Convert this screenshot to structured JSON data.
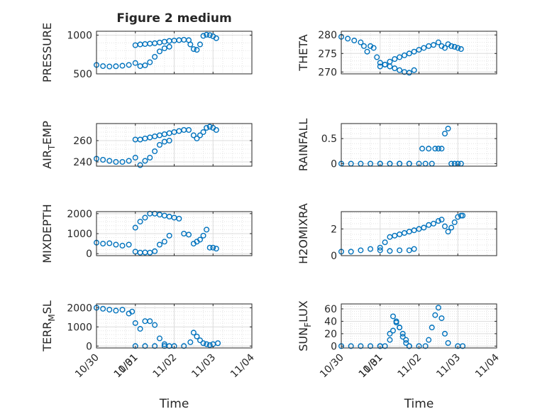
{
  "figure_title": "Figure 2 medium",
  "marker_color": "#0072BD",
  "chart_data": [
    {
      "type": "scatter",
      "title": "Figure 2 medium",
      "ylabel": "PRESSURE",
      "ylabel_sub": "",
      "ylabel_tail": "",
      "xlim": [
        "10/30",
        "11/04"
      ],
      "ylim": [
        500,
        1050
      ],
      "yticks": [
        500,
        1000
      ],
      "ytick_labels": [
        "500",
        "1000"
      ],
      "xticks": [
        "10/30",
        "10/31",
        "11/01",
        "11/02",
        "11/03",
        "11/04"
      ],
      "xtick_labels_shown": false,
      "grid": "major+minor",
      "series": [
        {
          "x": [
            "10/30 00:00",
            "10/30 04:00",
            "10/30 08:00",
            "10/30 12:00",
            "10/30 16:00",
            "10/30 20:00",
            "10/31 00:00",
            "10/31 03:00",
            "10/31 06:00",
            "10/31 09:00",
            "10/31 12:00",
            "10/31 15:00",
            "10/31 18:00",
            "10/31 21:00",
            "11/01 00:00",
            "11/01 03:00",
            "11/01 06:00",
            "11/01 09:00",
            "11/01 12:00",
            "11/01 15:00",
            "11/01 18:00",
            "11/01 21:00",
            "11/02 00:00",
            "11/02 03:00",
            "11/02 06:00",
            "11/02 09:00",
            "11/02 10:00",
            "11/02 12:00",
            "11/02 14:00",
            "11/02 16:00",
            "11/02 18:00",
            "11/02 20:00",
            "11/02 22:00",
            "11/03 00:00",
            "11/03 02:00"
          ],
          "y": [
            615,
            600,
            595,
            598,
            605,
            615,
            640,
            600,
            610,
            650,
            720,
            790,
            830,
            850,
            870,
            880,
            885,
            890,
            895,
            905,
            915,
            925,
            930,
            935,
            940,
            935,
            880,
            820,
            810,
            880,
            990,
            1005,
            1000,
            985,
            960
          ]
        }
      ]
    },
    {
      "type": "scatter",
      "ylabel": "THETA",
      "ylabel_sub": "",
      "ylabel_tail": "",
      "xlim": [
        "10/30",
        "11/04"
      ],
      "ylim": [
        269.5,
        281
      ],
      "yticks": [
        270,
        275,
        280
      ],
      "ytick_labels": [
        "270",
        "275",
        "280"
      ],
      "xtick_labels_shown": false,
      "grid": "major+minor",
      "series": [
        {
          "x": [
            "10/30 00:00",
            "10/30 04:00",
            "10/30 08:00",
            "10/30 12:00",
            "10/30 14:00",
            "10/30 16:00",
            "10/30 18:00",
            "10/30 20:00",
            "10/30 22:00",
            "10/31 00:00",
            "10/31 03:00",
            "10/31 06:00",
            "10/31 09:00",
            "10/31 12:00",
            "10/31 15:00",
            "10/31 18:00",
            "10/31 21:00",
            "11/01 00:00",
            "11/01 03:00",
            "11/01 06:00",
            "11/01 09:00",
            "11/01 12:00",
            "11/01 15:00",
            "11/01 18:00",
            "11/01 21:00",
            "11/02 00:00",
            "11/02 03:00",
            "11/02 06:00",
            "11/02 09:00",
            "11/02 12:00",
            "11/02 14:00",
            "11/02 16:00",
            "11/02 18:00",
            "11/02 20:00",
            "11/02 22:00",
            "11/03 00:00",
            "11/03 02:00"
          ],
          "y": [
            279.5,
            279.0,
            278.5,
            278.0,
            277.0,
            275.5,
            277.0,
            276.5,
            274.0,
            272.5,
            272.0,
            271.5,
            271.0,
            270.5,
            270.0,
            269.8,
            270.5,
            271.5,
            272.0,
            272.8,
            273.5,
            274.0,
            274.5,
            275.0,
            275.5,
            276.0,
            276.5,
            277.0,
            277.3,
            278.0,
            277.0,
            276.5,
            277.5,
            277.0,
            276.8,
            276.5,
            276.2
          ]
        }
      ]
    },
    {
      "type": "scatter",
      "ylabel": "AIR",
      "ylabel_sub": "T",
      "ylabel_tail": "EMP",
      "xlim": [
        "10/30",
        "11/04"
      ],
      "ylim": [
        236,
        276
      ],
      "yticks": [
        240,
        260
      ],
      "ytick_labels": [
        "240",
        "260"
      ],
      "xtick_labels_shown": false,
      "grid": "major+minor",
      "series": [
        {
          "x": [
            "10/30 00:00",
            "10/30 04:00",
            "10/30 08:00",
            "10/30 12:00",
            "10/30 16:00",
            "10/30 20:00",
            "10/31 00:00",
            "10/31 03:00",
            "10/31 06:00",
            "10/31 09:00",
            "10/31 12:00",
            "10/31 15:00",
            "10/31 18:00",
            "10/31 21:00",
            "11/01 00:00",
            "11/01 03:00",
            "11/01 06:00",
            "11/01 09:00",
            "11/01 12:00",
            "11/01 15:00",
            "11/01 18:00",
            "11/01 21:00",
            "11/02 00:00",
            "11/02 03:00",
            "11/02 06:00",
            "11/02 09:00",
            "11/02 12:00",
            "11/02 14:00",
            "11/02 16:00",
            "11/02 18:00",
            "11/02 20:00",
            "11/02 22:00",
            "11/03 00:00",
            "11/03 02:00"
          ],
          "y": [
            243,
            242,
            241,
            240,
            240,
            241,
            244,
            237,
            241,
            244,
            250,
            256,
            259,
            260,
            261,
            261,
            262,
            263,
            264,
            265,
            266,
            267,
            268,
            269,
            270,
            270,
            265,
            262,
            265,
            268,
            272,
            273,
            272,
            270
          ]
        }
      ]
    },
    {
      "type": "scatter",
      "ylabel": "RAINFALL",
      "ylabel_sub": "",
      "ylabel_tail": "",
      "xlim": [
        "10/30",
        "11/04"
      ],
      "ylim": [
        -0.05,
        0.8
      ],
      "yticks": [
        0,
        0.5
      ],
      "ytick_labels": [
        "0",
        "0.5"
      ],
      "xtick_labels_shown": false,
      "grid": "major+minor",
      "series": [
        {
          "x": [
            "10/30 00:00",
            "10/30 06:00",
            "10/30 12:00",
            "10/30 18:00",
            "10/31 00:00",
            "10/31 06:00",
            "10/31 12:00",
            "10/31 18:00",
            "11/01 00:00",
            "11/01 06:00",
            "11/01 12:00",
            "11/01 18:00",
            "11/02 00:00",
            "11/02 02:00",
            "11/02 04:00",
            "11/02 06:00",
            "11/02 08:00",
            "11/02 10:00",
            "11/02 12:00",
            "11/02 14:00",
            "11/02 16:00",
            "11/02 18:00",
            "11/02 20:00",
            "11/02 22:00",
            "11/03 00:00",
            "11/03 02:00"
          ],
          "y": [
            0,
            0,
            0,
            0,
            0,
            0,
            0,
            0,
            0,
            0,
            0,
            0,
            0,
            0.3,
            0,
            0.3,
            0,
            0.3,
            0.3,
            0.3,
            0.6,
            0.7,
            0,
            0,
            0,
            0
          ]
        }
      ]
    },
    {
      "type": "scatter",
      "ylabel": "MIXDEPTH",
      "ylabel_sub": "",
      "ylabel_tail": "",
      "xlim": [
        "10/30",
        "11/04"
      ],
      "ylim": [
        -100,
        2100
      ],
      "yticks": [
        0,
        1000,
        2000
      ],
      "ytick_labels": [
        "0",
        "1000",
        "2000"
      ],
      "xtick_labels_shown": false,
      "grid": "major+minor",
      "series": [
        {
          "x": [
            "10/30 00:00",
            "10/30 04:00",
            "10/30 08:00",
            "10/30 12:00",
            "10/30 16:00",
            "10/30 20:00",
            "10/31 00:00",
            "10/31 03:00",
            "10/31 06:00",
            "10/31 09:00",
            "10/31 12:00",
            "10/31 15:00",
            "10/31 18:00",
            "10/31 21:00",
            "11/01 00:00",
            "11/01 03:00",
            "11/01 06:00",
            "11/01 09:00",
            "11/01 12:00",
            "11/01 15:00",
            "11/01 18:00",
            "11/01 21:00",
            "11/02 00:00",
            "11/02 03:00",
            "11/02 06:00",
            "11/02 09:00",
            "11/02 12:00",
            "11/02 14:00",
            "11/02 16:00",
            "11/02 18:00",
            "11/02 20:00",
            "11/02 22:00",
            "11/03 00:00",
            "11/03 02:00"
          ],
          "y": [
            550,
            500,
            520,
            450,
            400,
            450,
            100,
            50,
            60,
            50,
            120,
            450,
            600,
            900,
            1300,
            1600,
            1800,
            2000,
            2000,
            1950,
            1900,
            1850,
            1800,
            1750,
            1000,
            950,
            500,
            600,
            700,
            900,
            1200,
            300,
            300,
            250
          ]
        }
      ]
    },
    {
      "type": "scatter",
      "ylabel": "H2OMIXRA",
      "ylabel_sub": "",
      "ylabel_tail": "",
      "xlim": [
        "10/30",
        "11/04"
      ],
      "ylim": [
        0,
        3.3
      ],
      "yticks": [
        0,
        2
      ],
      "ytick_labels": [
        "0",
        "2"
      ],
      "xtick_labels_shown": false,
      "grid": "major+minor",
      "series": [
        {
          "x": [
            "10/30 00:00",
            "10/30 06:00",
            "10/30 12:00",
            "10/30 18:00",
            "10/31 00:00",
            "10/31 06:00",
            "10/31 12:00",
            "10/31 18:00",
            "10/31 21:00",
            "11/01 00:00",
            "11/01 03:00",
            "11/01 06:00",
            "11/01 09:00",
            "11/01 12:00",
            "11/01 15:00",
            "11/01 18:00",
            "11/01 21:00",
            "11/02 00:00",
            "11/02 03:00",
            "11/02 06:00",
            "11/02 09:00",
            "11/02 12:00",
            "11/02 14:00",
            "11/02 16:00",
            "11/02 18:00",
            "11/02 20:00",
            "11/02 22:00",
            "11/03 00:00",
            "11/03 02:00",
            "11/03 03:00"
          ],
          "y": [
            0.3,
            0.3,
            0.4,
            0.5,
            0.4,
            0.35,
            0.4,
            0.4,
            0.5,
            0.6,
            1.0,
            1.4,
            1.5,
            1.6,
            1.7,
            1.8,
            1.9,
            2.0,
            2.1,
            2.3,
            2.4,
            2.6,
            2.7,
            2.2,
            1.8,
            2.1,
            2.5,
            2.9,
            3.0,
            3.0
          ]
        }
      ]
    },
    {
      "type": "scatter",
      "ylabel": "TERR",
      "ylabel_sub": "M",
      "ylabel_tail": "SL",
      "xlim": [
        "10/30",
        "11/04"
      ],
      "ylim": [
        -100,
        2200
      ],
      "yticks": [
        0,
        1000,
        2000
      ],
      "ytick_labels": [
        "0",
        "1000",
        "2000"
      ],
      "xticks": [
        "10/30",
        "10/31",
        "11/01",
        "11/02",
        "11/03",
        "11/04"
      ],
      "xtick_labels_shown": true,
      "xlabel": "Time",
      "grid": "major+minor",
      "series": [
        {
          "x": [
            "10/30 00:00",
            "10/30 04:00",
            "10/30 08:00",
            "10/30 12:00",
            "10/30 16:00",
            "10/30 20:00",
            "10/30 22:00",
            "10/31 00:00",
            "10/31 03:00",
            "10/31 06:00",
            "10/31 09:00",
            "10/31 12:00",
            "10/31 15:00",
            "10/31 18:00",
            "10/31 21:00",
            "11/01 00:00",
            "11/01 06:00",
            "11/01 12:00",
            "11/01 18:00",
            "11/02 00:00",
            "11/02 06:00",
            "11/02 10:00",
            "11/02 12:00",
            "11/02 14:00",
            "11/02 16:00",
            "11/02 18:00",
            "11/02 20:00",
            "11/02 22:00",
            "11/03 00:00",
            "11/03 03:00"
          ],
          "y": [
            2000,
            1950,
            1900,
            1850,
            1900,
            1700,
            1800,
            1200,
            900,
            1300,
            1300,
            1100,
            400,
            100,
            0,
            0,
            0,
            0,
            0,
            0,
            0,
            200,
            700,
            500,
            300,
            150,
            100,
            50,
            100,
            150
          ]
        }
      ]
    },
    {
      "type": "scatter",
      "ylabel": "SUN",
      "ylabel_sub": "F",
      "ylabel_tail": "LUX",
      "xlim": [
        "10/30",
        "11/04"
      ],
      "ylim": [
        -3,
        68
      ],
      "yticks": [
        0,
        20,
        40,
        60
      ],
      "ytick_labels": [
        "0",
        "20",
        "40",
        "60"
      ],
      "xticks": [
        "10/30",
        "10/31",
        "11/01",
        "11/02",
        "11/03",
        "11/04"
      ],
      "xtick_labels_shown": true,
      "xlabel": "Time",
      "grid": "major+minor",
      "series": [
        {
          "x": [
            "10/30 00:00",
            "10/30 06:00",
            "10/30 12:00",
            "10/30 18:00",
            "10/31 00:00",
            "10/31 03:00",
            "10/31 06:00",
            "10/31 08:00",
            "10/31 10:00",
            "10/31 12:00",
            "10/31 14:00",
            "10/31 16:00",
            "10/31 18:00",
            "11/01 00:00",
            "11/01 06:00",
            "11/01 08:00",
            "11/01 10:00",
            "11/01 12:00",
            "11/01 14:00",
            "11/01 16:00",
            "11/01 18:00",
            "11/02 00:00",
            "11/02 04:00",
            "11/02 06:00",
            "11/02 08:00",
            "11/02 10:00",
            "11/02 12:00",
            "11/02 14:00",
            "11/02 16:00",
            "11/02 18:00",
            "11/03 00:00",
            "11/03 03:00"
          ],
          "y": [
            0,
            0,
            0,
            0,
            0,
            0,
            20,
            48,
            40,
            30,
            20,
            10,
            0,
            0,
            10,
            25,
            38,
            30,
            15,
            5,
            0,
            0,
            0,
            10,
            30,
            50,
            62,
            45,
            20,
            5,
            0,
            0
          ]
        }
      ]
    }
  ]
}
